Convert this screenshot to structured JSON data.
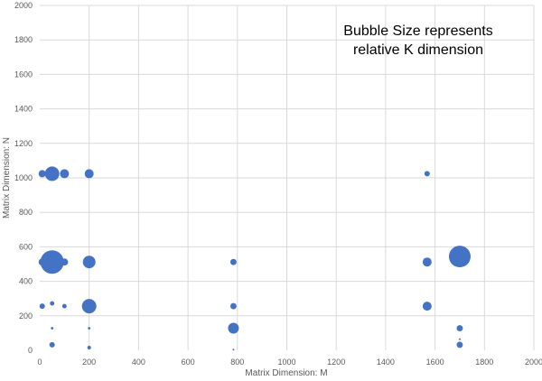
{
  "chart_data": {
    "type": "bubble",
    "title": "",
    "xlabel": "Matrix Dimension: M",
    "ylabel": "Matrix Dimension: N",
    "annotation": [
      "Bubble Size represents",
      "relative K dimension"
    ],
    "xlim": [
      0,
      2000
    ],
    "ylim": [
      0,
      2000
    ],
    "xticks": [
      0,
      200,
      400,
      600,
      800,
      1000,
      1200,
      1400,
      1600,
      1800,
      2000
    ],
    "yticks": [
      0,
      200,
      400,
      600,
      800,
      1000,
      1200,
      1400,
      1600,
      1800,
      2000
    ],
    "grid": true,
    "color": "#4472C4",
    "points": [
      {
        "x": 10,
        "y": 1024,
        "size": 16
      },
      {
        "x": 50,
        "y": 1024,
        "size": 64
      },
      {
        "x": 100,
        "y": 1024,
        "size": 25
      },
      {
        "x": 200,
        "y": 1024,
        "size": 25
      },
      {
        "x": 10,
        "y": 512,
        "size": 16
      },
      {
        "x": 50,
        "y": 512,
        "size": 169
      },
      {
        "x": 100,
        "y": 512,
        "size": 16
      },
      {
        "x": 200,
        "y": 512,
        "size": 49
      },
      {
        "x": 10,
        "y": 256,
        "size": 9
      },
      {
        "x": 50,
        "y": 272,
        "size": 6
      },
      {
        "x": 100,
        "y": 256,
        "size": 6
      },
      {
        "x": 200,
        "y": 256,
        "size": 64
      },
      {
        "x": 50,
        "y": 128,
        "size": 2
      },
      {
        "x": 200,
        "y": 128,
        "size": 2
      },
      {
        "x": 50,
        "y": 32,
        "size": 9
      },
      {
        "x": 200,
        "y": 16,
        "size": 4
      },
      {
        "x": 784,
        "y": 512,
        "size": 12
      },
      {
        "x": 784,
        "y": 256,
        "size": 12
      },
      {
        "x": 784,
        "y": 128,
        "size": 36
      },
      {
        "x": 784,
        "y": 4,
        "size": 1
      },
      {
        "x": 1568,
        "y": 1024,
        "size": 9
      },
      {
        "x": 1568,
        "y": 512,
        "size": 25
      },
      {
        "x": 1568,
        "y": 256,
        "size": 25
      },
      {
        "x": 1700,
        "y": 544,
        "size": 144
      },
      {
        "x": 1700,
        "y": 128,
        "size": 12
      },
      {
        "x": 1700,
        "y": 64,
        "size": 1
      },
      {
        "x": 1700,
        "y": 32,
        "size": 12
      }
    ]
  }
}
